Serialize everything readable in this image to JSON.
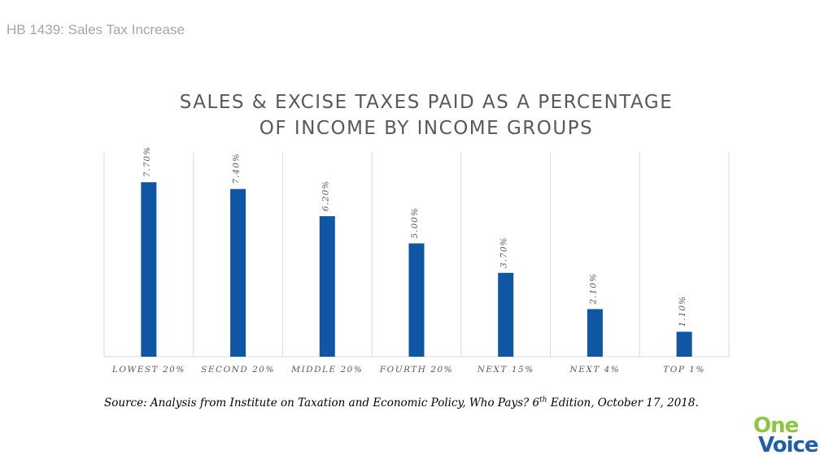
{
  "header": {
    "text": "HB 1439: Sales Tax Increase"
  },
  "chart_data": {
    "type": "bar",
    "title_lines": [
      "SALES & EXCISE TAXES PAID AS A PERCENTAGE",
      "OF INCOME BY INCOME GROUPS"
    ],
    "categories": [
      "LOWEST 20%",
      "SECOND 20%",
      "MIDDLE 20%",
      "FOURTH 20%",
      "NEXT 15%",
      "NEXT 4%",
      "TOP 1%"
    ],
    "values": [
      7.7,
      7.4,
      6.2,
      5.0,
      3.7,
      2.1,
      1.1
    ],
    "data_labels": [
      "7.70%",
      "7.40%",
      "6.20%",
      "5.00%",
      "3.70%",
      "2.10%",
      "1.10%"
    ],
    "ylim": [
      0,
      9.0
    ],
    "grid": "vertical category separators",
    "legend": "none",
    "bar_color": "#0f56a5",
    "xlabel": "",
    "ylabel": ""
  },
  "source": {
    "prefix": "Source: Analysis from Institute on Taxation and Economic Policy, Who Pays? 6",
    "superscript": "th",
    "suffix": " Edition, October 17, 2018."
  },
  "logo": {
    "word1": "One",
    "word2": "Voice",
    "color1": "#8cc63f",
    "color2": "#1f5fa8"
  }
}
